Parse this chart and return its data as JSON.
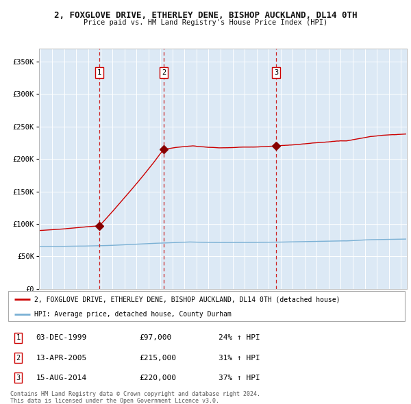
{
  "title": "2, FOXGLOVE DRIVE, ETHERLEY DENE, BISHOP AUCKLAND, DL14 0TH",
  "subtitle": "Price paid vs. HM Land Registry's House Price Index (HPI)",
  "ylim": [
    0,
    370000
  ],
  "yticks": [
    0,
    50000,
    100000,
    150000,
    200000,
    250000,
    300000,
    350000
  ],
  "ytick_labels": [
    "£0",
    "£50K",
    "£100K",
    "£150K",
    "£200K",
    "£250K",
    "£300K",
    "£350K"
  ],
  "xlim_start": 1994.9,
  "xlim_end": 2025.5,
  "bg_color": "#dce9f5",
  "grid_color": "#ffffff",
  "sale_color": "#cc0000",
  "hpi_color": "#7ab0d4",
  "transactions": [
    {
      "num": 1,
      "date": "03-DEC-1999",
      "price": 97000,
      "pct": "24%",
      "year": 1999.92
    },
    {
      "num": 2,
      "date": "13-APR-2005",
      "price": 215000,
      "pct": "31%",
      "year": 2005.28
    },
    {
      "num": 3,
      "date": "15-AUG-2014",
      "price": 220000,
      "pct": "37%",
      "year": 2014.62
    }
  ],
  "footer": "Contains HM Land Registry data © Crown copyright and database right 2024.\nThis data is licensed under the Open Government Licence v3.0.",
  "legend_label1": "2, FOXGLOVE DRIVE, ETHERLEY DENE, BISHOP AUCKLAND, DL14 0TH (detached house)",
  "legend_label2": "HPI: Average price, detached house, County Durham"
}
